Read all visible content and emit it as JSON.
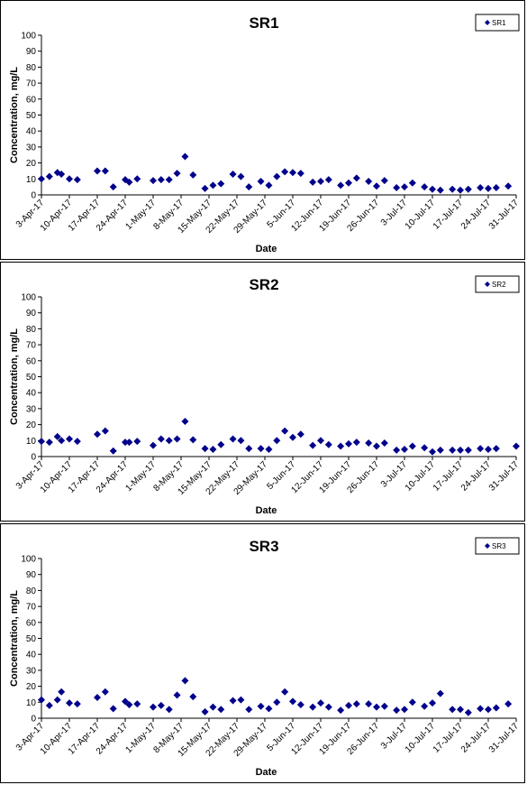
{
  "chart_data": [
    {
      "type": "scatter",
      "title": "SR1",
      "xlabel": "Date",
      "ylabel": "Concentration, mg/L",
      "ylim": [
        0,
        100
      ],
      "yticks": [
        0,
        10,
        20,
        30,
        40,
        50,
        60,
        70,
        80,
        90,
        100
      ],
      "xticks": [
        "3-Apr-17",
        "10-Apr-17",
        "17-Apr-17",
        "24-Apr-17",
        "1-May-17",
        "8-May-17",
        "15-May-17",
        "22-May-17",
        "29-May-17",
        "5-Jun-17",
        "12-Jun-17",
        "19-Jun-17",
        "26-Jun-17",
        "3-Jul-17",
        "10-Jul-17",
        "17-Jul-17",
        "24-Jul-17",
        "31-Jul-17"
      ],
      "xlim": [
        "3-Apr-17",
        "31-Jul-17"
      ],
      "grid": false,
      "legend_position": "top-right",
      "marker_color": "#00008B",
      "series": [
        {
          "name": "SR1",
          "points": [
            [
              "3-Apr-17",
              10
            ],
            [
              "5-Apr-17",
              11.5
            ],
            [
              "7-Apr-17",
              14
            ],
            [
              "8-Apr-17",
              13
            ],
            [
              "10-Apr-17",
              10
            ],
            [
              "12-Apr-17",
              9.5
            ],
            [
              "17-Apr-17",
              15
            ],
            [
              "19-Apr-17",
              15
            ],
            [
              "21-Apr-17",
              5
            ],
            [
              "24-Apr-17",
              9.5
            ],
            [
              "25-Apr-17",
              8
            ],
            [
              "27-Apr-17",
              10
            ],
            [
              "1-May-17",
              9
            ],
            [
              "3-May-17",
              9.5
            ],
            [
              "5-May-17",
              9.5
            ],
            [
              "7-May-17",
              13.5
            ],
            [
              "9-May-17",
              24
            ],
            [
              "11-May-17",
              12.5
            ],
            [
              "14-May-17",
              4
            ],
            [
              "16-May-17",
              6
            ],
            [
              "18-May-17",
              7
            ],
            [
              "21-May-17",
              13
            ],
            [
              "23-May-17",
              11.5
            ],
            [
              "25-May-17",
              5
            ],
            [
              "28-May-17",
              8.5
            ],
            [
              "30-May-17",
              6
            ],
            [
              "1-Jun-17",
              11.5
            ],
            [
              "3-Jun-17",
              14.5
            ],
            [
              "5-Jun-17",
              14
            ],
            [
              "7-Jun-17",
              13.5
            ],
            [
              "10-Jun-17",
              8
            ],
            [
              "12-Jun-17",
              8.5
            ],
            [
              "14-Jun-17",
              9.5
            ],
            [
              "17-Jun-17",
              6
            ],
            [
              "19-Jun-17",
              7.5
            ],
            [
              "21-Jun-17",
              10.5
            ],
            [
              "24-Jun-17",
              8.5
            ],
            [
              "26-Jun-17",
              5.5
            ],
            [
              "28-Jun-17",
              9
            ],
            [
              "1-Jul-17",
              4.5
            ],
            [
              "3-Jul-17",
              5
            ],
            [
              "5-Jul-17",
              7.5
            ],
            [
              "8-Jul-17",
              5
            ],
            [
              "10-Jul-17",
              3.5
            ],
            [
              "12-Jul-17",
              3
            ],
            [
              "15-Jul-17",
              3.5
            ],
            [
              "17-Jul-17",
              3
            ],
            [
              "19-Jul-17",
              3.5
            ],
            [
              "22-Jul-17",
              4.5
            ],
            [
              "24-Jul-17",
              4
            ],
            [
              "26-Jul-17",
              4.5
            ],
            [
              "29-Jul-17",
              5.5
            ]
          ]
        }
      ]
    },
    {
      "type": "scatter",
      "title": "SR2",
      "xlabel": "Date",
      "ylabel": "Concentration, mg/L",
      "ylim": [
        0,
        100
      ],
      "yticks": [
        0,
        10,
        20,
        30,
        40,
        50,
        60,
        70,
        80,
        90,
        100
      ],
      "xticks": [
        "3-Apr-17",
        "10-Apr-17",
        "17-Apr-17",
        "24-Apr-17",
        "1-May-17",
        "8-May-17",
        "15-May-17",
        "22-May-17",
        "29-May-17",
        "5-Jun-17",
        "12-Jun-17",
        "19-Jun-17",
        "26-Jun-17",
        "3-Jul-17",
        "10-Jul-17",
        "17-Jul-17",
        "24-Jul-17",
        "31-Jul-17"
      ],
      "xlim": [
        "3-Apr-17",
        "31-Jul-17"
      ],
      "grid": false,
      "legend_position": "top-right",
      "marker_color": "#00008B",
      "series": [
        {
          "name": "SR2",
          "points": [
            [
              "3-Apr-17",
              9.5
            ],
            [
              "5-Apr-17",
              9
            ],
            [
              "7-Apr-17",
              12.5
            ],
            [
              "8-Apr-17",
              10
            ],
            [
              "10-Apr-17",
              11
            ],
            [
              "12-Apr-17",
              9.5
            ],
            [
              "17-Apr-17",
              14
            ],
            [
              "19-Apr-17",
              16
            ],
            [
              "21-Apr-17",
              3.5
            ],
            [
              "24-Apr-17",
              9
            ],
            [
              "25-Apr-17",
              9
            ],
            [
              "27-Apr-17",
              9.5
            ],
            [
              "1-May-17",
              7
            ],
            [
              "3-May-17",
              11
            ],
            [
              "5-May-17",
              10
            ],
            [
              "7-May-17",
              11
            ],
            [
              "9-May-17",
              22
            ],
            [
              "11-May-17",
              10.5
            ],
            [
              "14-May-17",
              5
            ],
            [
              "16-May-17",
              4.5
            ],
            [
              "18-May-17",
              7.5
            ],
            [
              "21-May-17",
              11
            ],
            [
              "23-May-17",
              10
            ],
            [
              "25-May-17",
              5
            ],
            [
              "28-May-17",
              5
            ],
            [
              "30-May-17",
              4.5
            ],
            [
              "1-Jun-17",
              10
            ],
            [
              "3-Jun-17",
              16
            ],
            [
              "5-Jun-17",
              12
            ],
            [
              "7-Jun-17",
              14
            ],
            [
              "10-Jun-17",
              7
            ],
            [
              "12-Jun-17",
              10
            ],
            [
              "14-Jun-17",
              7.5
            ],
            [
              "17-Jun-17",
              6.5
            ],
            [
              "19-Jun-17",
              8
            ],
            [
              "21-Jun-17",
              9
            ],
            [
              "24-Jun-17",
              8.5
            ],
            [
              "26-Jun-17",
              6.5
            ],
            [
              "28-Jun-17",
              8.5
            ],
            [
              "1-Jul-17",
              4
            ],
            [
              "3-Jul-17",
              4.5
            ],
            [
              "5-Jul-17",
              6.5
            ],
            [
              "8-Jul-17",
              5.5
            ],
            [
              "10-Jul-17",
              3
            ],
            [
              "12-Jul-17",
              4
            ],
            [
              "15-Jul-17",
              4
            ],
            [
              "17-Jul-17",
              4
            ],
            [
              "19-Jul-17",
              4
            ],
            [
              "22-Jul-17",
              5
            ],
            [
              "24-Jul-17",
              4.5
            ],
            [
              "26-Jul-17",
              5
            ],
            [
              "31-Jul-17",
              6.5
            ]
          ]
        }
      ]
    },
    {
      "type": "scatter",
      "title": "SR3",
      "xlabel": "Date",
      "ylabel": "Concentration, mg/L",
      "ylim": [
        0,
        100
      ],
      "yticks": [
        0,
        10,
        20,
        30,
        40,
        50,
        60,
        70,
        80,
        90,
        100
      ],
      "xticks": [
        "3-Apr-17",
        "10-Apr-17",
        "17-Apr-17",
        "24-Apr-17",
        "1-May-17",
        "8-May-17",
        "15-May-17",
        "22-May-17",
        "29-May-17",
        "5-Jun-17",
        "12-Jun-17",
        "19-Jun-17",
        "26-Jun-17",
        "3-Jul-17",
        "10-Jul-17",
        "17-Jul-17",
        "24-Jul-17",
        "31-Jul-17"
      ],
      "xlim": [
        "3-Apr-17",
        "31-Jul-17"
      ],
      "grid": false,
      "legend_position": "top-right",
      "marker_color": "#00008B",
      "series": [
        {
          "name": "SR3",
          "points": [
            [
              "3-Apr-17",
              11.5
            ],
            [
              "5-Apr-17",
              8
            ],
            [
              "7-Apr-17",
              11.5
            ],
            [
              "8-Apr-17",
              16.5
            ],
            [
              "10-Apr-17",
              9.5
            ],
            [
              "12-Apr-17",
              9
            ],
            [
              "17-Apr-17",
              13
            ],
            [
              "19-Apr-17",
              16.5
            ],
            [
              "21-Apr-17",
              6
            ],
            [
              "24-Apr-17",
              10.5
            ],
            [
              "25-Apr-17",
              8.5
            ],
            [
              "27-Apr-17",
              9
            ],
            [
              "1-May-17",
              7
            ],
            [
              "3-May-17",
              8
            ],
            [
              "5-May-17",
              5.5
            ],
            [
              "7-May-17",
              14.5
            ],
            [
              "9-May-17",
              23.5
            ],
            [
              "11-May-17",
              13.5
            ],
            [
              "14-May-17",
              4
            ],
            [
              "16-May-17",
              7
            ],
            [
              "18-May-17",
              5.5
            ],
            [
              "21-May-17",
              11
            ],
            [
              "23-May-17",
              11.5
            ],
            [
              "25-May-17",
              5.5
            ],
            [
              "28-May-17",
              7.5
            ],
            [
              "30-May-17",
              6
            ],
            [
              "1-Jun-17",
              10
            ],
            [
              "3-Jun-17",
              16.5
            ],
            [
              "5-Jun-17",
              10.5
            ],
            [
              "7-Jun-17",
              8.5
            ],
            [
              "10-Jun-17",
              7
            ],
            [
              "12-Jun-17",
              9.5
            ],
            [
              "14-Jun-17",
              7
            ],
            [
              "17-Jun-17",
              5
            ],
            [
              "19-Jun-17",
              8
            ],
            [
              "21-Jun-17",
              9
            ],
            [
              "24-Jun-17",
              9
            ],
            [
              "26-Jun-17",
              7
            ],
            [
              "28-Jun-17",
              7.5
            ],
            [
              "1-Jul-17",
              5
            ],
            [
              "3-Jul-17",
              5.5
            ],
            [
              "5-Jul-17",
              10
            ],
            [
              "8-Jul-17",
              7.5
            ],
            [
              "10-Jul-17",
              9.5
            ],
            [
              "12-Jul-17",
              15.5
            ],
            [
              "15-Jul-17",
              5.5
            ],
            [
              "17-Jul-17",
              5.5
            ],
            [
              "19-Jul-17",
              3.5
            ],
            [
              "22-Jul-17",
              6
            ],
            [
              "24-Jul-17",
              5.5
            ],
            [
              "26-Jul-17",
              6.5
            ],
            [
              "29-Jul-17",
              9
            ]
          ]
        }
      ]
    }
  ]
}
